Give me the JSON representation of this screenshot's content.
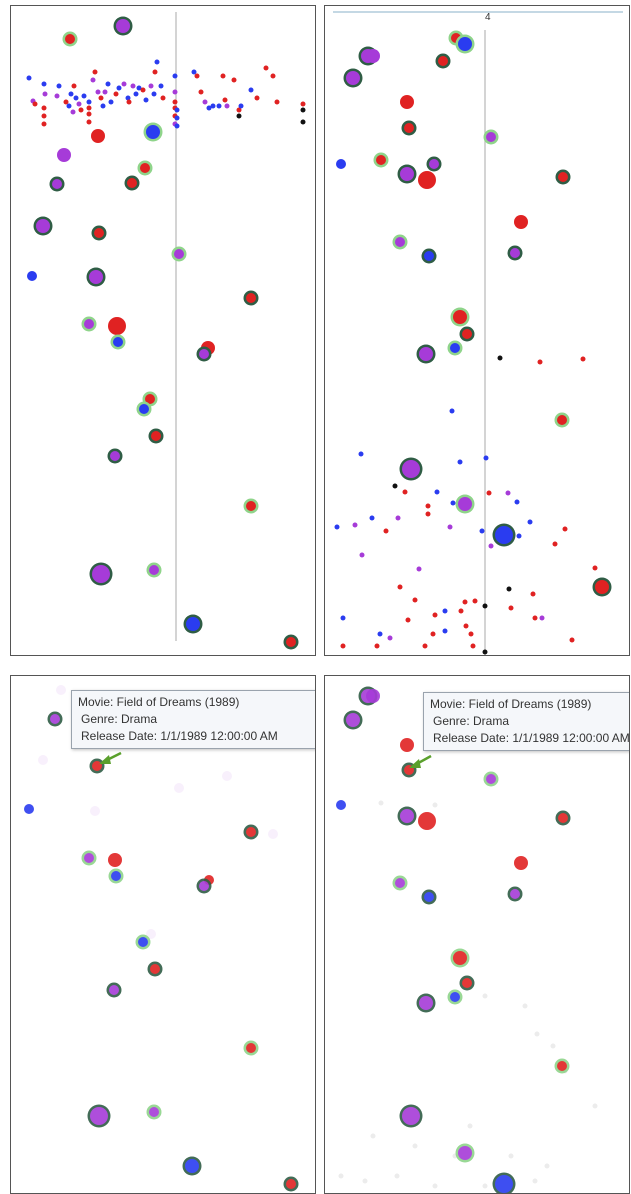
{
  "chart_data": [
    {
      "type": "scatter",
      "panel": "top-left",
      "grid": false,
      "reference_line": true
    },
    {
      "type": "scatter",
      "panel": "top-right",
      "grid": false,
      "reference_line": true,
      "top_label": "4"
    },
    {
      "type": "scatter",
      "panel": "bottom-left",
      "grid": false,
      "reference_line": false
    },
    {
      "type": "scatter",
      "panel": "bottom-right",
      "grid": false,
      "reference_line": false
    }
  ],
  "tooltip": {
    "movie": "Movie: Field of Dreams (1989)",
    "genre": "Genre: Drama",
    "release": "Release Date: 1/1/1989 12:00:00 AM"
  },
  "colors": {
    "red": "#e02222",
    "blue": "#2a3cf0",
    "purple": "#a63bd8",
    "ring_light": "#8fd48a",
    "ring_dark": "#2f5d45",
    "axis_line": "#b8b8b8"
  }
}
